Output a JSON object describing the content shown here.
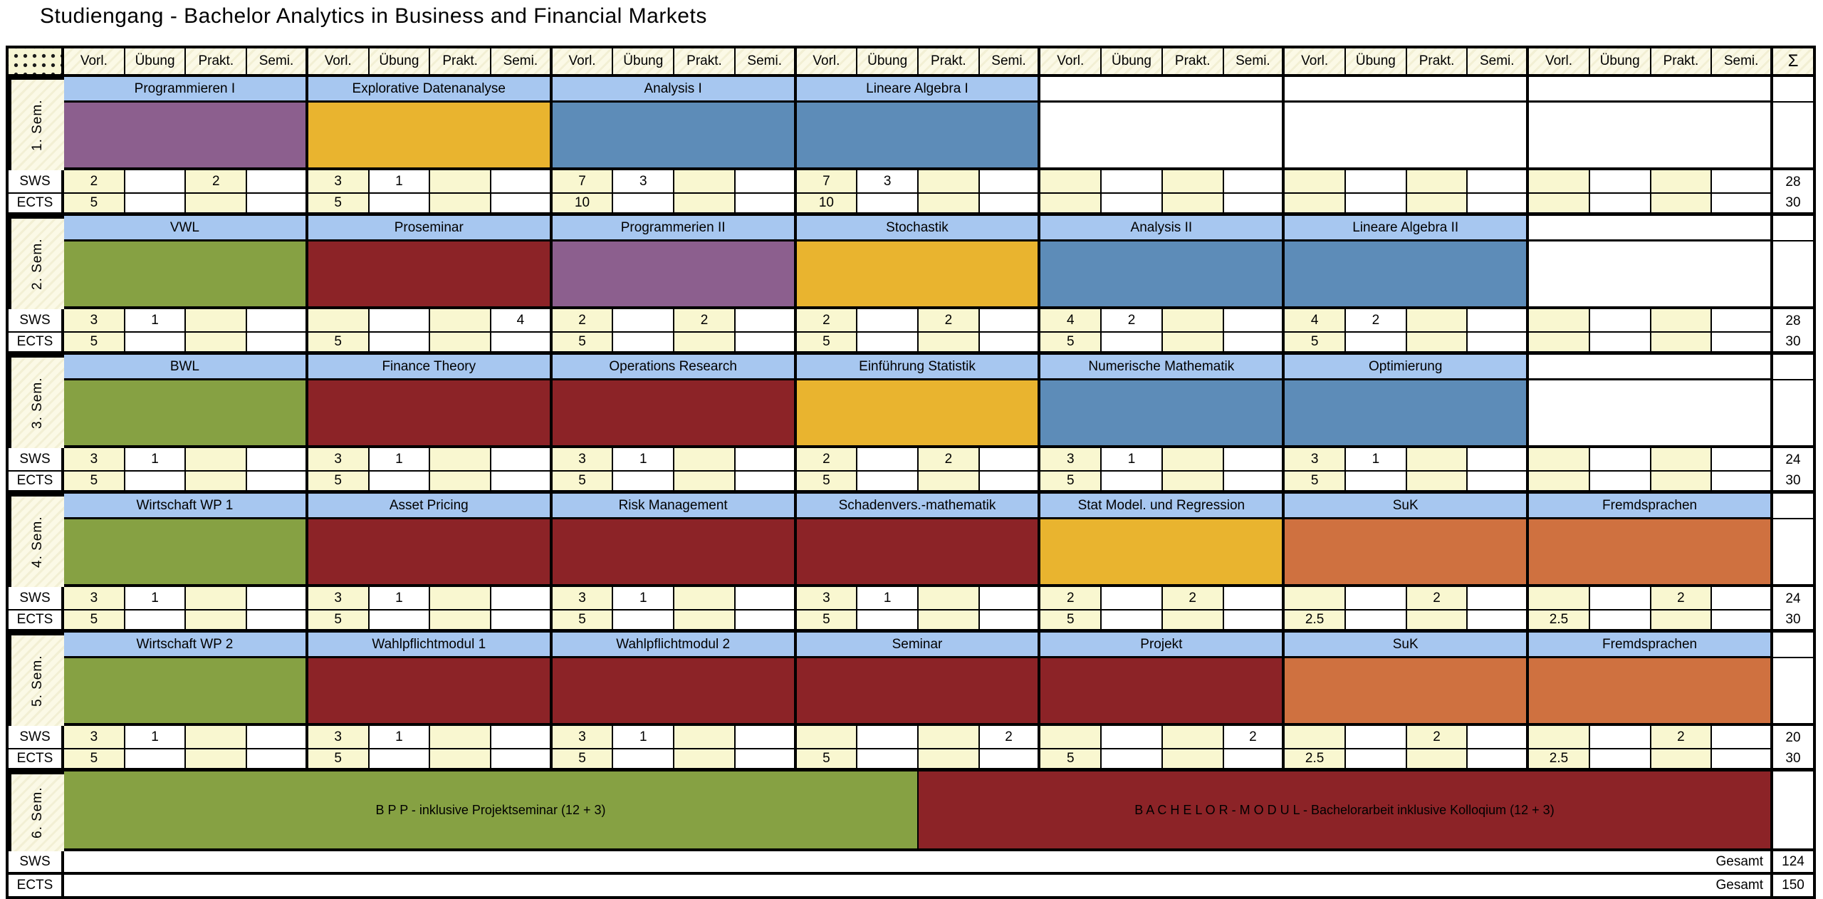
{
  "title": "Studiengang - Bachelor Analytics in Business and Financial Markets",
  "table": {
    "column_types": [
      "Vorl.",
      "Übung",
      "Prakt.",
      "Semi."
    ],
    "sum_header": "Σ",
    "row_labels": {
      "sws": "SWS",
      "ects": "ECTS"
    },
    "gesamt_label": "Gesamt",
    "colors": {
      "purple": "#8C5F8E",
      "gold": "#E9B42F",
      "blue": "#5D8CB8",
      "green": "#86A143",
      "darkred": "#8C2327",
      "orange": "#CF7140",
      "course_header_bg": "#A7C7F0",
      "cell_yellow": "#F9F7D0"
    },
    "semesters": [
      {
        "label": "1. Sem.",
        "sws_total": "28",
        "ects_total": "30",
        "courses": [
          {
            "name": "Programmieren I",
            "color": "purple",
            "sws": [
              "2",
              "",
              "2",
              ""
            ],
            "ects": [
              "5",
              "",
              "",
              ""
            ]
          },
          {
            "name": "Explorative Datenanalyse",
            "color": "gold",
            "sws": [
              "3",
              "1",
              "",
              ""
            ],
            "ects": [
              "5",
              "",
              "",
              ""
            ]
          },
          {
            "name": "Analysis I",
            "color": "blue",
            "sws": [
              "7",
              "3",
              "",
              ""
            ],
            "ects": [
              "10",
              "",
              "",
              ""
            ]
          },
          {
            "name": "Lineare Algebra I",
            "color": "blue",
            "sws": [
              "7",
              "3",
              "",
              ""
            ],
            "ects": [
              "10",
              "",
              "",
              ""
            ]
          },
          null,
          null,
          null
        ]
      },
      {
        "label": "2. Sem.",
        "sws_total": "28",
        "ects_total": "30",
        "courses": [
          {
            "name": "VWL",
            "color": "green",
            "sws": [
              "3",
              "1",
              "",
              ""
            ],
            "ects": [
              "5",
              "",
              "",
              ""
            ]
          },
          {
            "name": "Proseminar",
            "color": "darkred",
            "sws": [
              "",
              "",
              "",
              "4"
            ],
            "ects": [
              "5",
              "",
              "",
              ""
            ]
          },
          {
            "name": "Programmerien II",
            "color": "purple",
            "sws": [
              "2",
              "",
              "2",
              ""
            ],
            "ects": [
              "5",
              "",
              "",
              ""
            ]
          },
          {
            "name": "Stochastik",
            "color": "gold",
            "sws": [
              "2",
              "",
              "2",
              ""
            ],
            "ects": [
              "5",
              "",
              "",
              ""
            ]
          },
          {
            "name": "Analysis II",
            "color": "blue",
            "sws": [
              "4",
              "2",
              "",
              ""
            ],
            "ects": [
              "5",
              "",
              "",
              ""
            ]
          },
          {
            "name": "Lineare Algebra II",
            "color": "blue",
            "sws": [
              "4",
              "2",
              "",
              ""
            ],
            "ects": [
              "5",
              "",
              "",
              ""
            ]
          },
          null
        ]
      },
      {
        "label": "3. Sem.",
        "sws_total": "24",
        "ects_total": "30",
        "courses": [
          {
            "name": "BWL",
            "color": "green",
            "sws": [
              "3",
              "1",
              "",
              ""
            ],
            "ects": [
              "5",
              "",
              "",
              ""
            ]
          },
          {
            "name": "Finance Theory",
            "color": "darkred",
            "sws": [
              "3",
              "1",
              "",
              ""
            ],
            "ects": [
              "5",
              "",
              "",
              ""
            ]
          },
          {
            "name": "Operations Research",
            "color": "darkred",
            "sws": [
              "3",
              "1",
              "",
              ""
            ],
            "ects": [
              "5",
              "",
              "",
              ""
            ]
          },
          {
            "name": "Einführung Statistik",
            "color": "gold",
            "sws": [
              "2",
              "",
              "2",
              ""
            ],
            "ects": [
              "5",
              "",
              "",
              ""
            ]
          },
          {
            "name": "Numerische Mathematik",
            "color": "blue",
            "sws": [
              "3",
              "1",
              "",
              ""
            ],
            "ects": [
              "5",
              "",
              "",
              ""
            ]
          },
          {
            "name": "Optimierung",
            "color": "blue",
            "sws": [
              "3",
              "1",
              "",
              ""
            ],
            "ects": [
              "5",
              "",
              "",
              ""
            ]
          },
          null
        ]
      },
      {
        "label": "4. Sem.",
        "sws_total": "24",
        "ects_total": "30",
        "courses": [
          {
            "name": "Wirtschaft WP 1",
            "color": "green",
            "sws": [
              "3",
              "1",
              "",
              ""
            ],
            "ects": [
              "5",
              "",
              "",
              ""
            ]
          },
          {
            "name": "Asset Pricing",
            "color": "darkred",
            "sws": [
              "3",
              "1",
              "",
              ""
            ],
            "ects": [
              "5",
              "",
              "",
              ""
            ]
          },
          {
            "name": "Risk Management",
            "color": "darkred",
            "sws": [
              "3",
              "1",
              "",
              ""
            ],
            "ects": [
              "5",
              "",
              "",
              ""
            ]
          },
          {
            "name": "Schadenvers.-mathematik",
            "color": "darkred",
            "sws": [
              "3",
              "1",
              "",
              ""
            ],
            "ects": [
              "5",
              "",
              "",
              ""
            ]
          },
          {
            "name": "Stat Model. und Regression",
            "color": "gold",
            "sws": [
              "2",
              "",
              "2",
              ""
            ],
            "ects": [
              "5",
              "",
              "",
              ""
            ]
          },
          {
            "name": "SuK",
            "color": "orange",
            "sws": [
              "",
              "",
              "2",
              ""
            ],
            "ects": [
              "2.5",
              "",
              "",
              ""
            ]
          },
          {
            "name": "Fremdsprachen",
            "color": "orange",
            "sws": [
              "",
              "",
              "2",
              ""
            ],
            "ects": [
              "2.5",
              "",
              "",
              ""
            ]
          }
        ]
      },
      {
        "label": "5. Sem.",
        "sws_total": "20",
        "ects_total": "30",
        "courses": [
          {
            "name": "Wirtschaft WP 2",
            "color": "green",
            "sws": [
              "3",
              "1",
              "",
              ""
            ],
            "ects": [
              "5",
              "",
              "",
              ""
            ]
          },
          {
            "name": "Wahlpflichtmodul 1",
            "color": "darkred",
            "sws": [
              "3",
              "1",
              "",
              ""
            ],
            "ects": [
              "5",
              "",
              "",
              ""
            ]
          },
          {
            "name": "Wahlpflichtmodul 2",
            "color": "darkred",
            "sws": [
              "3",
              "1",
              "",
              ""
            ],
            "ects": [
              "5",
              "",
              "",
              ""
            ]
          },
          {
            "name": "Seminar",
            "color": "darkred",
            "sws": [
              "",
              "",
              "",
              "2"
            ],
            "ects": [
              "5",
              "",
              "",
              ""
            ]
          },
          {
            "name": "Projekt",
            "color": "darkred",
            "sws": [
              "",
              "",
              "",
              "2"
            ],
            "ects": [
              "5",
              "",
              "",
              ""
            ]
          },
          {
            "name": "SuK",
            "color": "orange",
            "sws": [
              "",
              "",
              "2",
              ""
            ],
            "ects": [
              "2.5",
              "",
              "",
              ""
            ]
          },
          {
            "name": "Fremdsprachen",
            "color": "orange",
            "sws": [
              "",
              "",
              "2",
              ""
            ],
            "ects": [
              "2.5",
              "",
              "",
              ""
            ]
          }
        ]
      }
    ],
    "final_semester": {
      "label": "6. Sem.",
      "blocks": [
        {
          "name": "B P P - inklusive Projektseminar (12 + 3)",
          "color": "green",
          "span": 14
        },
        {
          "name": "B A C H E L O R - M O D U L - Bachelorarbeit inklusive Kolloqium (12 + 3)",
          "color": "darkred",
          "span": 14
        }
      ],
      "sws_total": "124",
      "ects_total": "150"
    }
  }
}
